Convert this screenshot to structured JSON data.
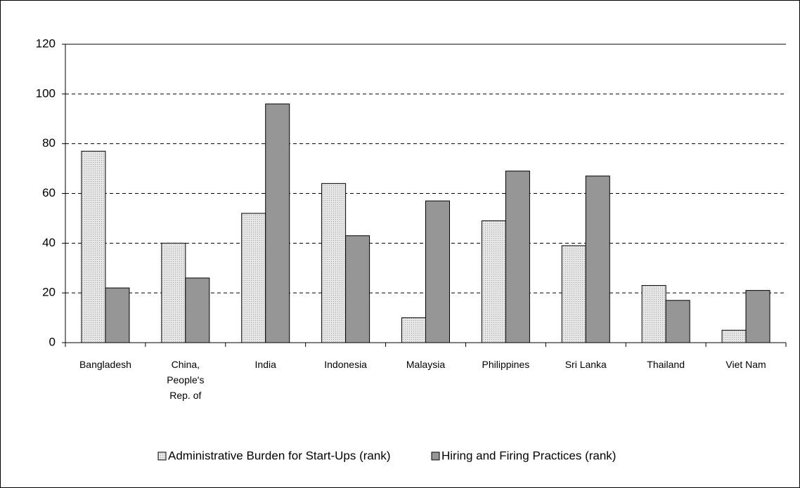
{
  "chart_data": {
    "type": "bar",
    "categories": [
      "Bangladesh",
      "China, People's Rep. of",
      "India",
      "Indonesia",
      "Malaysia",
      "Philippines",
      "Sri Lanka",
      "Thailand",
      "Viet Nam"
    ],
    "series": [
      {
        "name": "Administrative Burden for Start-Ups (rank)",
        "color": "#d9d9d9",
        "values": [
          77,
          40,
          52,
          64,
          10,
          49,
          39,
          23,
          5
        ]
      },
      {
        "name": "Hiring and Firing Practices (rank)",
        "color": "#969696",
        "values": [
          22,
          26,
          96,
          43,
          57,
          69,
          67,
          17,
          21
        ]
      }
    ],
    "ylim": [
      0,
      120
    ],
    "yticks": [
      0,
      20,
      40,
      60,
      80,
      100,
      120
    ],
    "grid": true,
    "legend": "bottom"
  }
}
